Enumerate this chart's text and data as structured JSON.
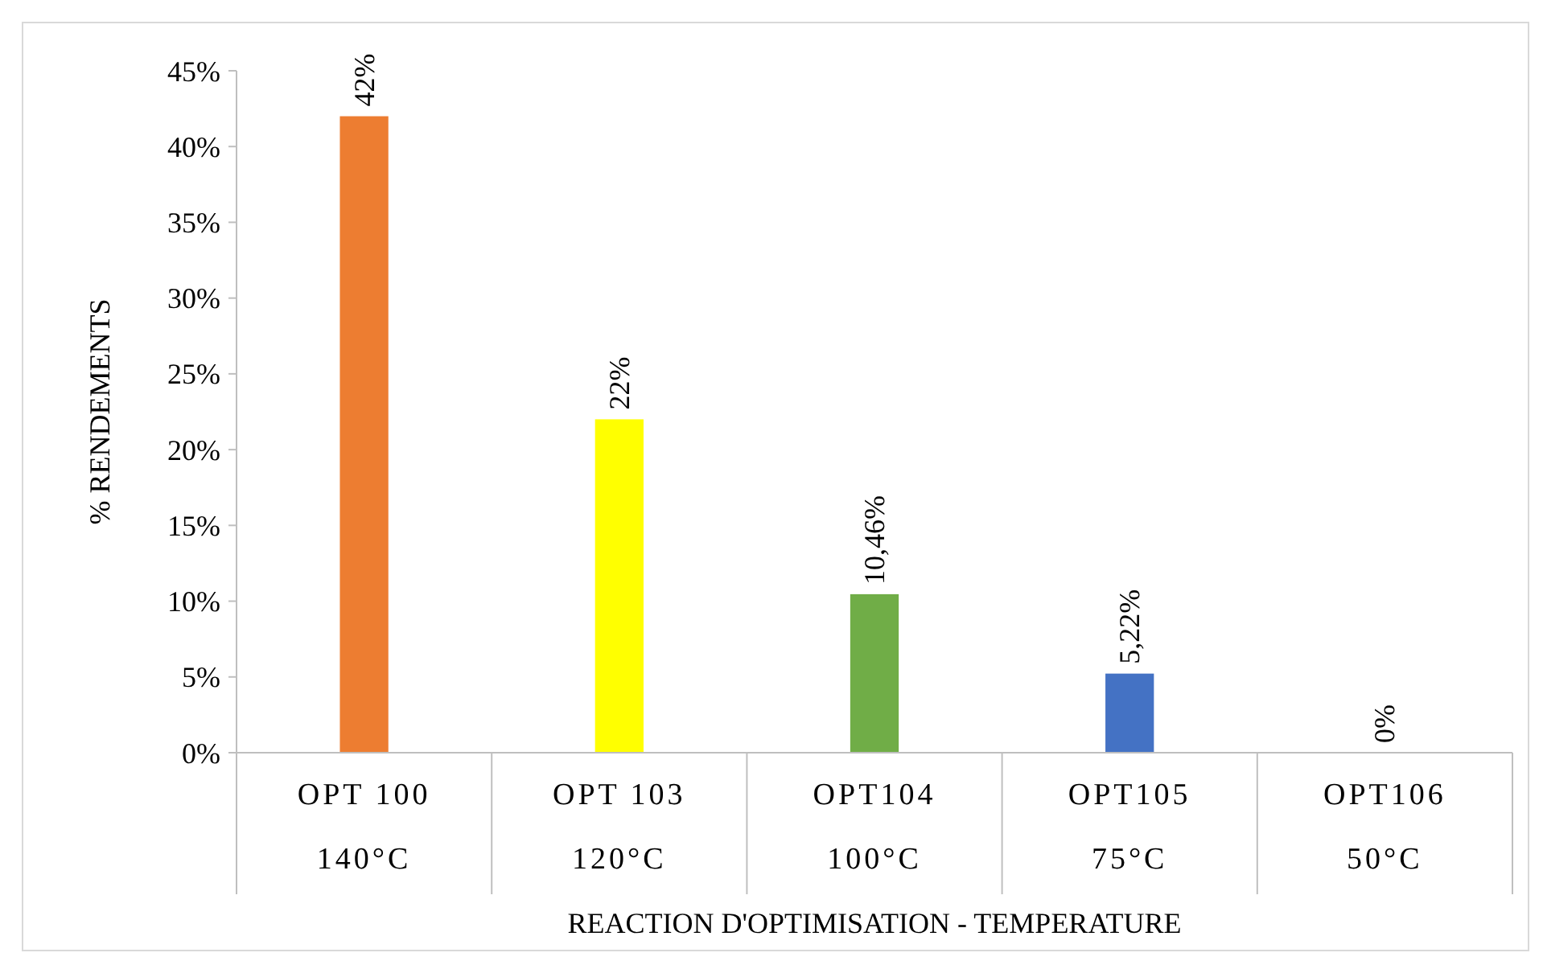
{
  "chart_data": {
    "type": "bar",
    "xlabel": "REACTION D'OPTIMISATION - TEMPERATURE",
    "ylabel": "% RENDEMENTS",
    "categories": [
      "OPT 100\n140°C",
      "OPT 103\n120°C",
      "OPT104\n100°C",
      "OPT105\n75°C",
      "OPT106\n50°C"
    ],
    "values": [
      42,
      22,
      10.46,
      5.22,
      0
    ],
    "colors": [
      "#ed7d31",
      "#ffff00",
      "#70ad47",
      "#4472c4",
      "#a5a5a5"
    ],
    "value_labels": [
      "42%",
      "22%",
      "10,46%",
      "5,22%",
      "0%"
    ],
    "ylim": [
      0,
      45
    ],
    "yticks": [
      {
        "value": 0,
        "label": "0%"
      },
      {
        "value": 5,
        "label": "5%"
      },
      {
        "value": 10,
        "label": "10%"
      },
      {
        "value": 15,
        "label": "15%"
      },
      {
        "value": 20,
        "label": "20%"
      },
      {
        "value": 25,
        "label": "25%"
      },
      {
        "value": 30,
        "label": "30%"
      },
      {
        "value": 35,
        "label": "35%"
      },
      {
        "value": 40,
        "label": "40%"
      },
      {
        "value": 45,
        "label": "45%"
      }
    ],
    "grid": false
  }
}
